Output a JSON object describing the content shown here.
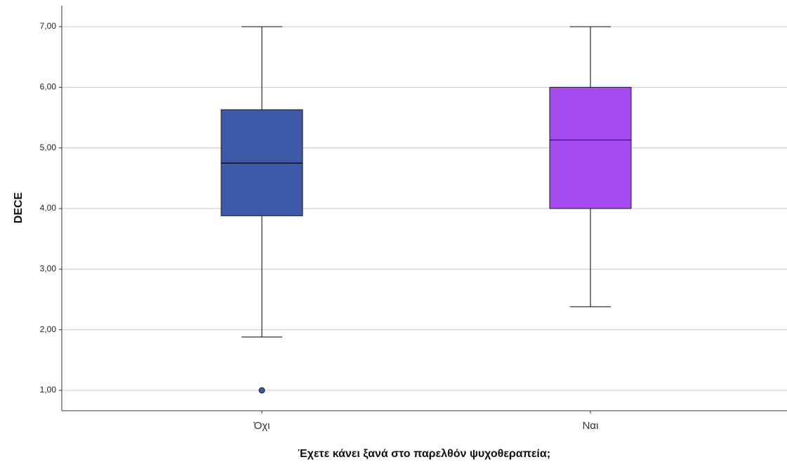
{
  "chart_data": {
    "type": "boxplot",
    "title": "",
    "xlabel": "Έχετε κάνει ξανά στο παρελθόν ψυχοθεραπεία;",
    "ylabel": "DECE",
    "ylim": [
      0.75,
      7.3
    ],
    "yticks": [
      1,
      2,
      3,
      4,
      5,
      6,
      7
    ],
    "ytick_labels": [
      "1,00",
      "2,00",
      "3,00",
      "4,00",
      "5,00",
      "6,00",
      "7,00"
    ],
    "grid": "horizontal",
    "legend": "none",
    "categories": [
      "Όχι",
      "Ναι"
    ],
    "boxes": [
      {
        "category": "Όχι",
        "whisker_low": 1.88,
        "q1": 3.88,
        "median": 4.75,
        "q3": 5.63,
        "whisker_high": 7.0,
        "outliers": [
          1.0
        ],
        "color": "#3d59a8"
      },
      {
        "category": "Ναι",
        "whisker_low": 2.38,
        "q1": 4.0,
        "median": 5.13,
        "q3": 6.0,
        "whisker_high": 7.0,
        "outliers": [],
        "color": "#a64af2"
      }
    ]
  }
}
